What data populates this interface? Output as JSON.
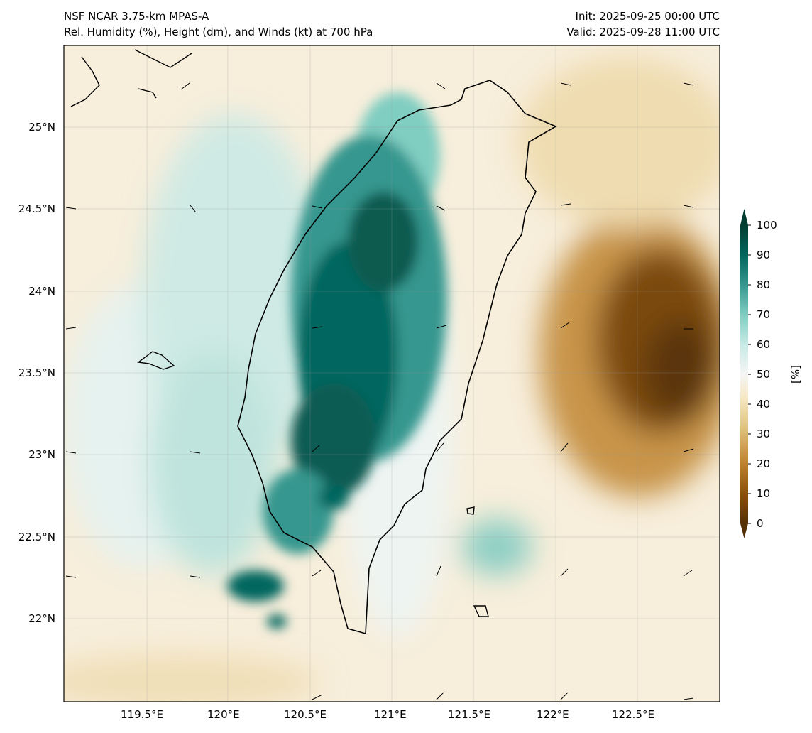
{
  "header": {
    "title_left_1": "NSF NCAR 3.75-km MPAS-A",
    "title_left_2": "Rel. Humidity (%), Height (dm), and Winds (kt) at 700 hPa",
    "title_right_1": "Init: 2025-09-25 00:00 UTC",
    "title_right_2": "Valid: 2025-09-28 11:00 UTC"
  },
  "map": {
    "lat_labels": [
      "25°N",
      "24.5°N",
      "24°N",
      "23.5°N",
      "23°N",
      "22.5°N",
      "22°N"
    ],
    "lon_labels": [
      "119.5°E",
      "120°E",
      "120.5°E",
      "121°E",
      "121.5°E",
      "122°E",
      "122.5°E"
    ]
  },
  "colorbar": {
    "label": "[%]",
    "ticks": [
      "100",
      "90",
      "80",
      "70",
      "60",
      "50",
      "40",
      "30",
      "20",
      "10",
      "0"
    ],
    "colors": {
      "low": "#543005",
      "mid": "#f5f5f5",
      "high": "#003c30"
    }
  }
}
